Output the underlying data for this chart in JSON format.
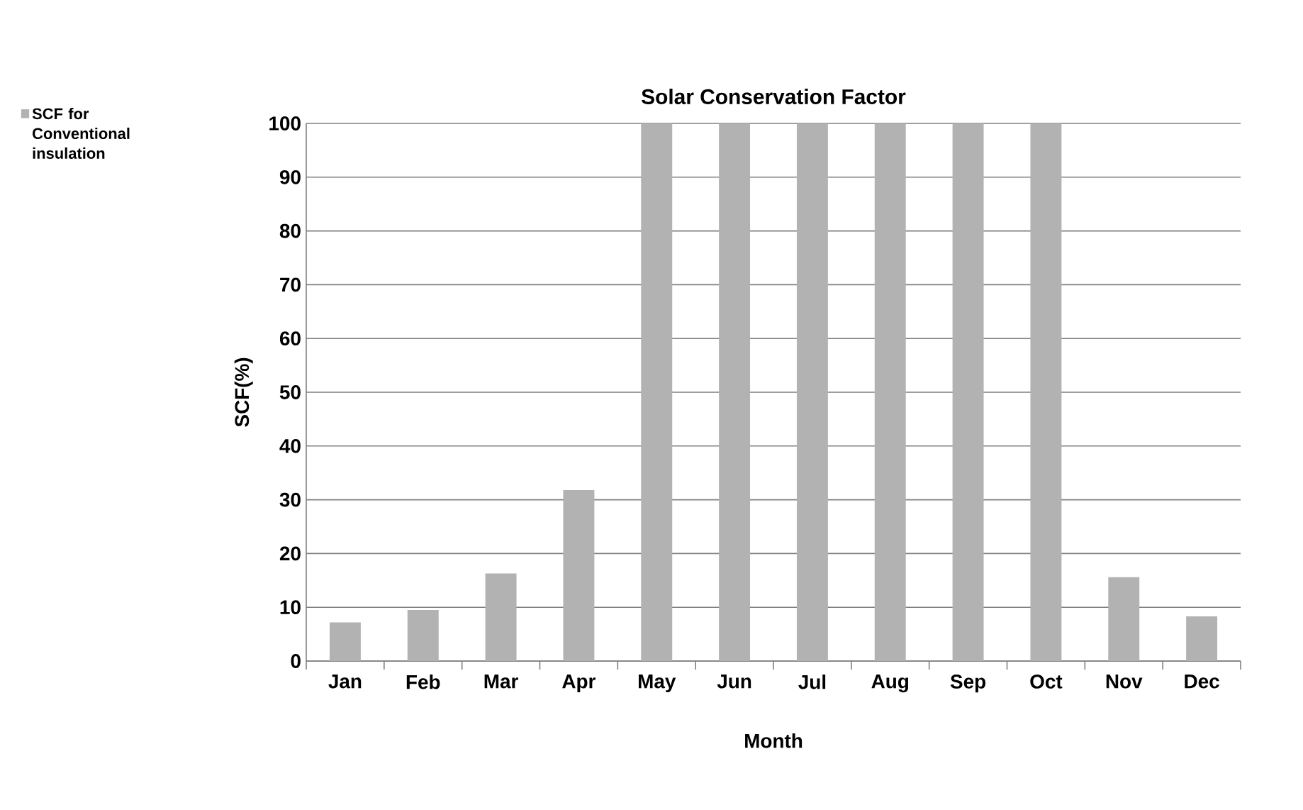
{
  "chart_data": {
    "type": "bar",
    "title": "Solar Conservation Factor",
    "xlabel": "Month",
    "ylabel": "SCF(%)",
    "categories": [
      "Jan",
      "Feb",
      "Mar",
      "Apr",
      "May",
      "Jun",
      "Jul",
      "Aug",
      "Sep",
      "Oct",
      "Nov",
      "Dec"
    ],
    "series": [
      {
        "name": "SCF for Conventional insulation",
        "color": "#b2b2b2",
        "values": [
          7.2,
          9.5,
          16.3,
          31.8,
          100,
          100,
          100,
          100,
          100,
          100,
          15.6,
          8.3
        ]
      }
    ],
    "ylim": [
      0,
      100
    ],
    "yticks": [
      0,
      10,
      20,
      30,
      40,
      50,
      60,
      70,
      80,
      90,
      100
    ],
    "grid": "y",
    "legend": "top left"
  }
}
